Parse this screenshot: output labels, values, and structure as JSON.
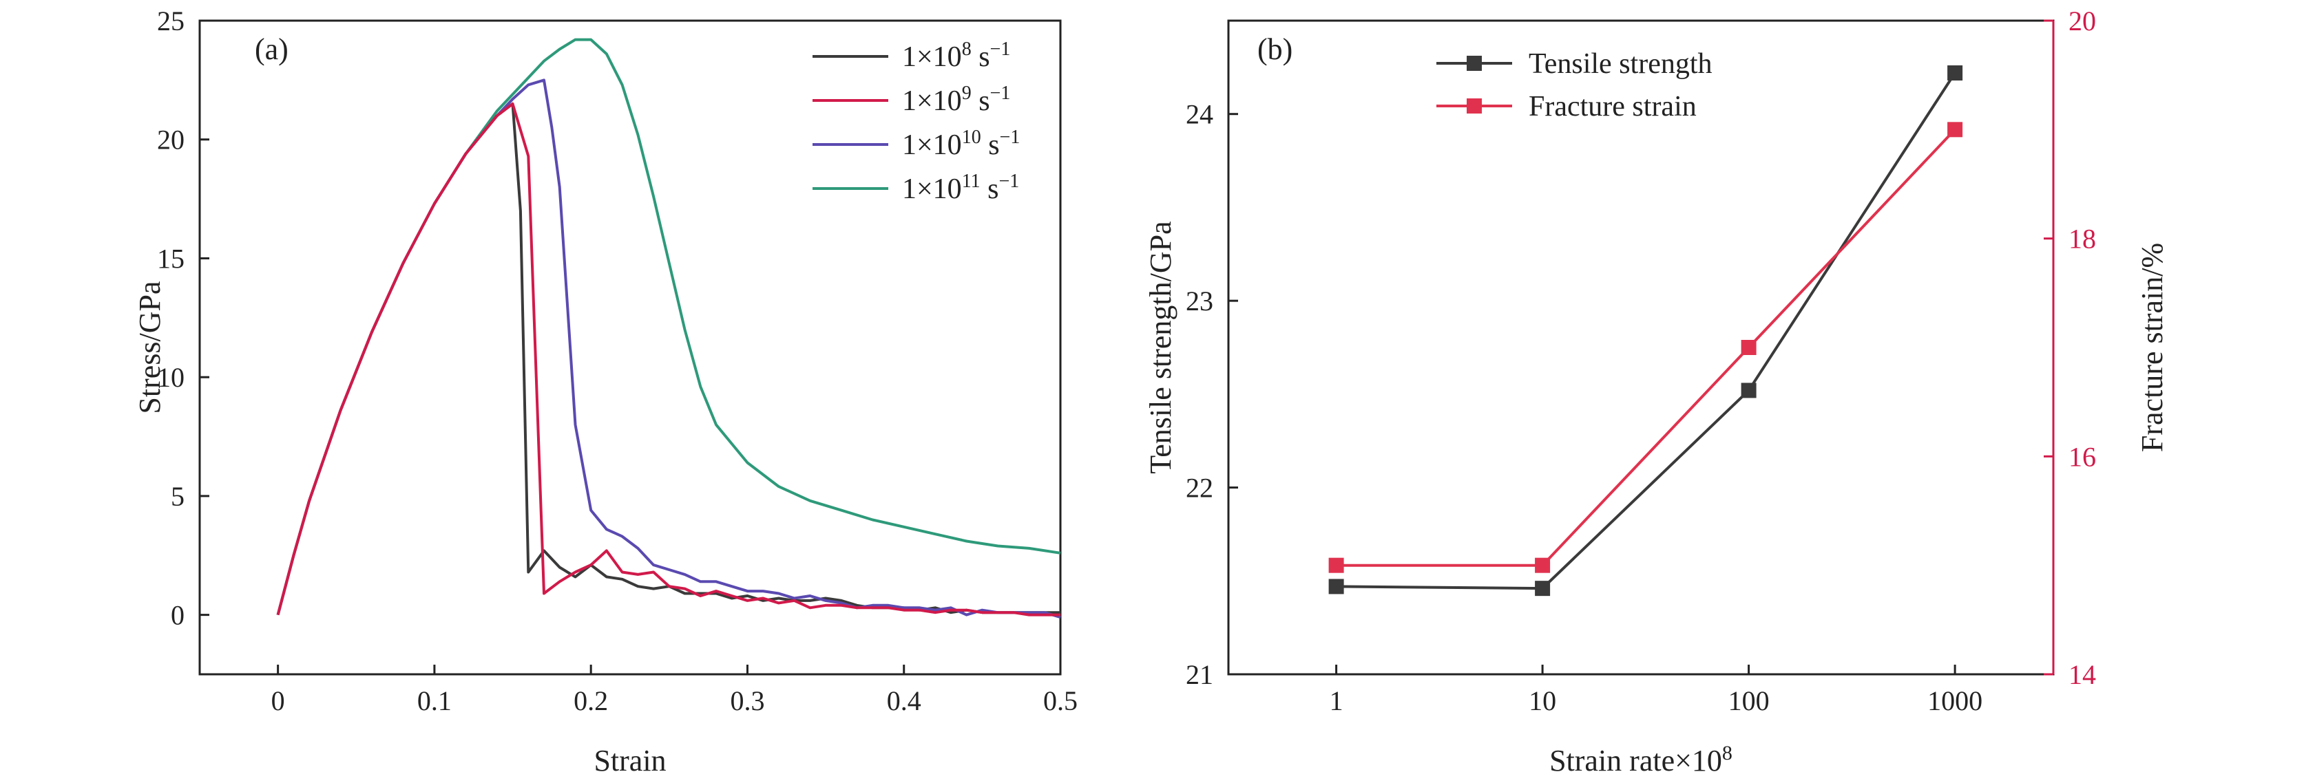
{
  "chart_data": [
    {
      "type": "line",
      "panel_label": "(a)",
      "xlabel": "Strain",
      "ylabel": "Stress/GPa",
      "xlim": [
        -0.05,
        0.5
      ],
      "ylim": [
        -2.5,
        25
      ],
      "xticks": [
        0,
        0.1,
        0.2,
        0.3,
        0.4,
        0.5
      ],
      "xtick_labels": [
        "0",
        "0.1",
        "0.2",
        "0.3",
        "0.4",
        "0.5"
      ],
      "yticks": [
        0,
        5,
        10,
        15,
        20,
        25
      ],
      "ytick_labels": [
        "0",
        "5",
        "10",
        "15",
        "20",
        "25"
      ],
      "legend_position": "top-right",
      "series": [
        {
          "name": "1×10⁸ s⁻¹",
          "legend": {
            "base": "1×10",
            "exp": "8",
            "unit": " s",
            "unit_exp": "−1"
          },
          "color": "#3a3a3a",
          "x": [
            0,
            0.01,
            0.02,
            0.04,
            0.06,
            0.08,
            0.1,
            0.12,
            0.14,
            0.15,
            0.155,
            0.16,
            0.17,
            0.18,
            0.19,
            0.2,
            0.21,
            0.22,
            0.23,
            0.24,
            0.25,
            0.26,
            0.27,
            0.28,
            0.29,
            0.3,
            0.31,
            0.32,
            0.33,
            0.34,
            0.35,
            0.36,
            0.37,
            0.38,
            0.39,
            0.4,
            0.41,
            0.42,
            0.43,
            0.44,
            0.45,
            0.46,
            0.47,
            0.48,
            0.49,
            0.5
          ],
          "y": [
            0,
            2.5,
            4.8,
            8.6,
            11.9,
            14.8,
            17.3,
            19.4,
            21.0,
            21.5,
            17.0,
            1.8,
            2.7,
            2.0,
            1.6,
            2.1,
            1.6,
            1.5,
            1.2,
            1.1,
            1.2,
            0.9,
            0.9,
            0.9,
            0.7,
            0.8,
            0.6,
            0.7,
            0.6,
            0.6,
            0.7,
            0.6,
            0.4,
            0.3,
            0.3,
            0.3,
            0.2,
            0.3,
            0.1,
            0.2,
            0.1,
            0.1,
            0.1,
            0.1,
            0.1,
            0.1
          ]
        },
        {
          "name": "1×10⁹ s⁻¹",
          "legend": {
            "base": "1×10",
            "exp": "9",
            "unit": " s",
            "unit_exp": "−1"
          },
          "color": "#d11a4a",
          "x": [
            0,
            0.01,
            0.02,
            0.04,
            0.06,
            0.08,
            0.1,
            0.12,
            0.14,
            0.15,
            0.16,
            0.17,
            0.18,
            0.19,
            0.2,
            0.21,
            0.22,
            0.23,
            0.24,
            0.25,
            0.26,
            0.27,
            0.28,
            0.29,
            0.3,
            0.31,
            0.32,
            0.33,
            0.34,
            0.35,
            0.36,
            0.37,
            0.38,
            0.39,
            0.4,
            0.41,
            0.42,
            0.43,
            0.44,
            0.45,
            0.46,
            0.47,
            0.48,
            0.49,
            0.5
          ],
          "y": [
            0,
            2.5,
            4.8,
            8.6,
            11.9,
            14.8,
            17.3,
            19.4,
            21.0,
            21.5,
            19.3,
            0.9,
            1.4,
            1.8,
            2.1,
            2.7,
            1.8,
            1.7,
            1.8,
            1.2,
            1.1,
            0.8,
            1.0,
            0.8,
            0.6,
            0.7,
            0.5,
            0.6,
            0.3,
            0.4,
            0.4,
            0.3,
            0.3,
            0.3,
            0.2,
            0.2,
            0.1,
            0.2,
            0.2,
            0.1,
            0.1,
            0.1,
            0.0,
            0.0,
            0.0
          ]
        },
        {
          "name": "1×10¹⁰ s⁻¹",
          "legend": {
            "base": "1×10",
            "exp": "10",
            "unit": " s",
            "unit_exp": "−1"
          },
          "color": "#5a4ab0",
          "x": [
            0,
            0.01,
            0.02,
            0.04,
            0.06,
            0.08,
            0.1,
            0.12,
            0.14,
            0.15,
            0.16,
            0.17,
            0.175,
            0.18,
            0.19,
            0.2,
            0.21,
            0.22,
            0.23,
            0.24,
            0.25,
            0.26,
            0.27,
            0.28,
            0.29,
            0.3,
            0.31,
            0.32,
            0.33,
            0.34,
            0.35,
            0.36,
            0.37,
            0.38,
            0.39,
            0.4,
            0.41,
            0.42,
            0.43,
            0.44,
            0.45,
            0.46,
            0.47,
            0.48,
            0.49,
            0.5
          ],
          "y": [
            0,
            2.5,
            4.8,
            8.6,
            11.9,
            14.8,
            17.3,
            19.4,
            21.0,
            21.7,
            22.3,
            22.5,
            20.5,
            18.0,
            8.0,
            4.4,
            3.6,
            3.3,
            2.8,
            2.1,
            1.9,
            1.7,
            1.4,
            1.4,
            1.2,
            1.0,
            1.0,
            0.9,
            0.7,
            0.8,
            0.6,
            0.5,
            0.3,
            0.4,
            0.4,
            0.3,
            0.3,
            0.2,
            0.3,
            0.0,
            0.2,
            0.1,
            0.1,
            0.1,
            0.1,
            -0.1
          ]
        },
        {
          "name": "1×10¹¹ s⁻¹",
          "legend": {
            "base": "1×10",
            "exp": "11",
            "unit": " s",
            "unit_exp": "−1"
          },
          "color": "#2e9a7a",
          "x": [
            0,
            0.01,
            0.02,
            0.04,
            0.06,
            0.08,
            0.1,
            0.12,
            0.14,
            0.16,
            0.17,
            0.18,
            0.19,
            0.2,
            0.21,
            0.22,
            0.23,
            0.24,
            0.25,
            0.26,
            0.27,
            0.28,
            0.29,
            0.3,
            0.32,
            0.34,
            0.36,
            0.38,
            0.4,
            0.42,
            0.44,
            0.46,
            0.48,
            0.5
          ],
          "y": [
            0,
            2.5,
            4.8,
            8.6,
            11.9,
            14.8,
            17.3,
            19.4,
            21.2,
            22.6,
            23.3,
            23.8,
            24.2,
            24.2,
            23.6,
            22.3,
            20.2,
            17.6,
            14.8,
            12.0,
            9.6,
            8.0,
            7.2,
            6.4,
            5.4,
            4.8,
            4.4,
            4.0,
            3.7,
            3.4,
            3.1,
            2.9,
            2.8,
            2.6
          ]
        }
      ]
    },
    {
      "type": "line",
      "panel_label": "(b)",
      "xlabel": "Strain rate×10",
      "xlabel_exp": "8",
      "ylabel": "Tensile strength/GPa",
      "y2label": "Fracture strain/%",
      "x_scale": "log",
      "categories": [
        "1",
        "10",
        "100",
        "1000"
      ],
      "x": [
        1,
        10,
        100,
        1000
      ],
      "xlim": [
        0.3,
        3000
      ],
      "ylim": [
        21,
        24.5
      ],
      "yticks": [
        21,
        22,
        23,
        24
      ],
      "ytick_labels": [
        "21",
        "22",
        "23",
        "24"
      ],
      "y2lim": [
        14,
        20
      ],
      "y2ticks": [
        14,
        16,
        18,
        20
      ],
      "y2tick_labels": [
        "14",
        "16",
        "18",
        "20"
      ],
      "legend_position": "top-left",
      "series": [
        {
          "name": "Tensile strength",
          "axis": "left",
          "color": "#3a3a3a",
          "marker": "square",
          "values": [
            21.47,
            21.46,
            22.52,
            24.22
          ]
        },
        {
          "name": "Fracture strain",
          "axis": "right",
          "color": "#e0324e",
          "marker": "square",
          "values": [
            15.0,
            15.0,
            17.0,
            19.0
          ]
        }
      ]
    }
  ]
}
